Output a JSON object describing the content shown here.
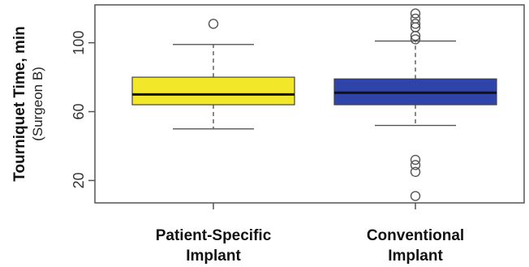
{
  "chart_data": {
    "type": "boxplot",
    "ylabel": "Tourniquet Time, min",
    "ylabel_sub": "(Surgeon B)",
    "ylim": [
      7,
      122
    ],
    "yticks": [
      20,
      60,
      100
    ],
    "grid": false,
    "categories": [
      {
        "line1": "Patient-Specific",
        "line2": "Implant"
      },
      {
        "line1": "Conventional",
        "line2": "Implant"
      }
    ],
    "boxes": [
      {
        "name": "Patient-Specific Implant",
        "color": "#f2e829",
        "whisker_low": 50,
        "q1": 64,
        "median": 70,
        "q3": 80,
        "whisker_high": 99,
        "outliers": [
          111
        ]
      },
      {
        "name": "Conventional Implant",
        "color": "#2f44a8",
        "whisker_low": 52,
        "q1": 64,
        "median": 71,
        "q3": 79,
        "whisker_high": 101,
        "outliers": [
          117,
          114,
          111,
          109,
          104,
          102,
          32,
          29,
          25,
          11
        ]
      }
    ]
  }
}
